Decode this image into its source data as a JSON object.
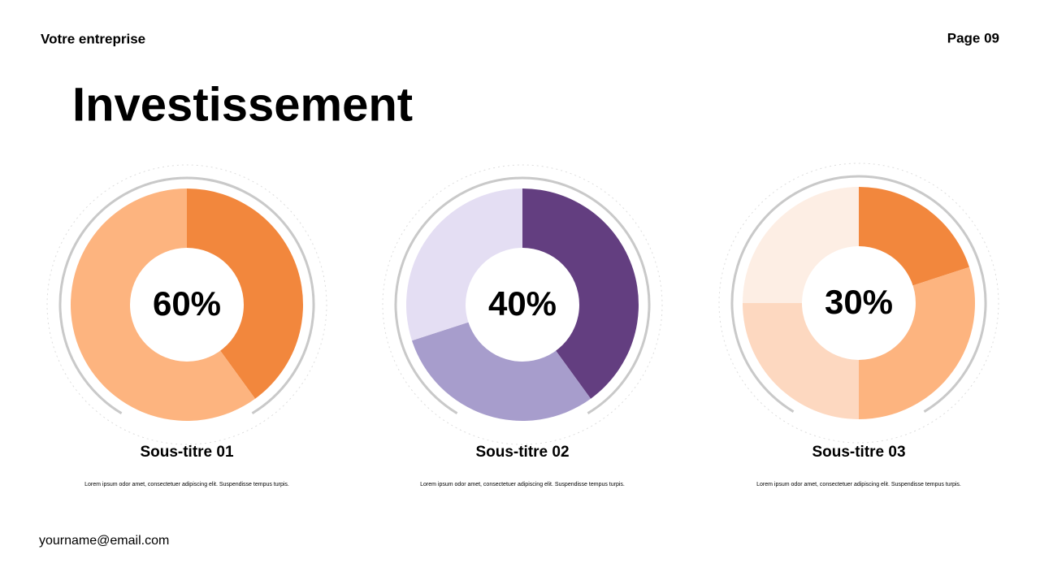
{
  "header": {
    "company": "Votre entreprise",
    "page": "Page 09"
  },
  "title": "Investissement",
  "chart_data": [
    {
      "type": "donut",
      "title": "Sous-titre 01",
      "note": "Lorem ipsum odor amet, consectetuer adipiscing elit. Suspendisse tempus turpis.",
      "values": [
        40,
        60
      ],
      "value_labels": [
        null,
        "60%"
      ],
      "colors": [
        "#f2873d",
        "#fdb47f"
      ]
    },
    {
      "type": "donut",
      "title": "Sous-titre 02",
      "note": "Lorem ipsum odor amet, consectetuer adipiscing elit. Suspendisse tempus turpis.",
      "values": [
        40,
        30,
        30
      ],
      "value_labels": [
        "40%",
        null,
        null
      ],
      "colors": [
        "#633e80",
        "#a79dcc",
        "#e4def3"
      ]
    },
    {
      "type": "donut",
      "title": "Sous-titre 03",
      "note": "Lorem ipsum odor amet, consectetuer adipiscing elit. Suspendisse tempus turpis.",
      "values": [
        20,
        30,
        25,
        25
      ],
      "value_labels": [
        null,
        "30%",
        null,
        null
      ],
      "colors": [
        "#f2873d",
        "#fdb47f",
        "#fdd8c0",
        "#fdeee4"
      ]
    }
  ],
  "footer": {
    "email": "yourname@email.com"
  }
}
